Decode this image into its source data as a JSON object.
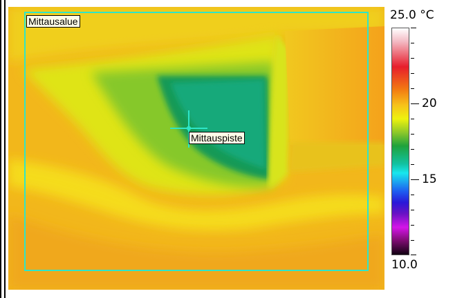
{
  "image": {
    "roi_label": "Mittausalue",
    "spot_label": "Mittauspiste"
  },
  "scale": {
    "max_label": "25.0 °C",
    "min_label": "10.0",
    "tick_labels": [
      "20",
      "15"
    ],
    "colors": {
      "roi_box": "#2ee6c8",
      "crosshair": "#2ee6c8"
    }
  }
}
